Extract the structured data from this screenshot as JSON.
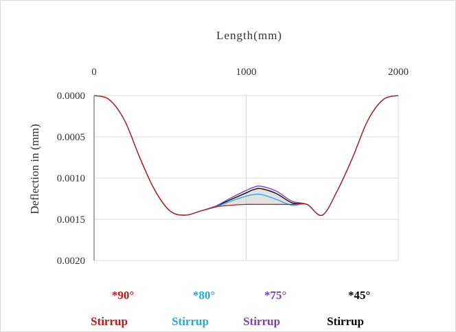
{
  "chart_data": {
    "type": "line",
    "xlabel": "Length(mm)",
    "ylabel": "Deflection in (mm)",
    "xlim": [
      0,
      2000
    ],
    "ylim": [
      0,
      0.002
    ],
    "y_inverted": true,
    "x_axis_position": "top",
    "x_ticks": [
      "0",
      "1000",
      "2000"
    ],
    "y_ticks": [
      "0.0000",
      "0.0005",
      "0.0010",
      "0.0015",
      "0.0020"
    ],
    "grid": "major",
    "legend_position": "bottom",
    "colors": {
      "s90": "#cc1111",
      "s80": "#22aadd",
      "s75": "#7a3fc0",
      "s45": "#000000"
    },
    "x": [
      0,
      100,
      200,
      300,
      400,
      500,
      600,
      700,
      800,
      900,
      1000,
      1050,
      1100,
      1200,
      1300,
      1400,
      1500,
      1600,
      1700,
      1800,
      1900,
      2000
    ],
    "series": [
      {
        "name": "*90° Stirrup",
        "values": [
          0,
          5e-05,
          0.0003,
          0.00075,
          0.00115,
          0.0014,
          0.00145,
          0.0014,
          0.00135,
          0.00133,
          0.00132,
          0.00132,
          0.00132,
          0.00132,
          0.00132,
          0.00132,
          0.00145,
          0.00115,
          0.00075,
          0.0003,
          5e-05,
          0
        ]
      },
      {
        "name": "*80° Stirrup",
        "values": [
          0,
          5e-05,
          0.0003,
          0.00075,
          0.00115,
          0.0014,
          0.00145,
          0.0014,
          0.00135,
          0.00128,
          0.00122,
          0.0012,
          0.0012,
          0.00126,
          0.00133,
          0.00132,
          0.00145,
          0.00115,
          0.00075,
          0.0003,
          5e-05,
          0
        ]
      },
      {
        "name": "*75° Stirrup",
        "values": [
          0,
          5e-05,
          0.0003,
          0.00075,
          0.00115,
          0.0014,
          0.00145,
          0.0014,
          0.00134,
          0.00124,
          0.00115,
          0.00111,
          0.0011,
          0.00116,
          0.00128,
          0.00132,
          0.00145,
          0.00115,
          0.00075,
          0.0003,
          5e-05,
          0
        ]
      },
      {
        "name": "*45° Stirrup",
        "values": [
          0,
          5e-05,
          0.0003,
          0.00075,
          0.00115,
          0.0014,
          0.00145,
          0.0014,
          0.00134,
          0.00126,
          0.00118,
          0.00114,
          0.00113,
          0.00119,
          0.0013,
          0.00132,
          0.00145,
          0.00115,
          0.00075,
          0.0003,
          5e-05,
          0
        ]
      }
    ],
    "legend": [
      {
        "key": "s90",
        "degree": "*90°",
        "word": "Stirrup"
      },
      {
        "key": "s80",
        "degree": "*80°",
        "word": "Stirrup"
      },
      {
        "key": "s75",
        "degree": "*75°",
        "word": "Stirrup"
      },
      {
        "key": "s45",
        "degree": "*45°",
        "word": "Stirrup"
      }
    ]
  }
}
